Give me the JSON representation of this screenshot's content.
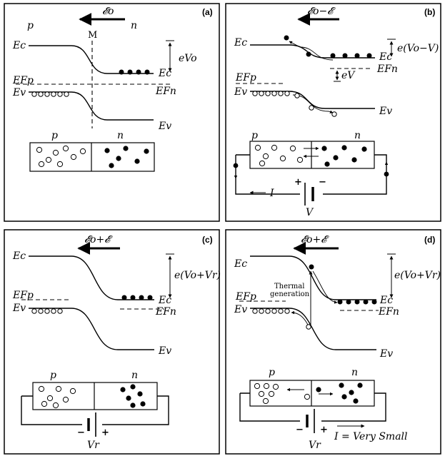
{
  "panels": [
    {
      "tag": "(a)",
      "field": "𝓔o",
      "p": "p",
      "n": "n",
      "M": "M",
      "Ec": "Ec",
      "Ev": "Ev",
      "EFp": "EFp",
      "Ec_right": "Ec",
      "EFn_right": "EFn",
      "Ev_right": "Ev",
      "energy": "eVo",
      "bar_p": "p",
      "bar_n": "n"
    },
    {
      "tag": "(b)",
      "field": "𝓔o−𝓔",
      "Ec": "Ec",
      "Ev": "Ev",
      "EFp": "EFp",
      "Ec_right": "Ec",
      "EFn_right": "EFn",
      "Ev_right": "Ev",
      "energy": "e(Vo−V)",
      "energy2": "eV",
      "bar_p": "p",
      "bar_n": "n",
      "current": "I",
      "voltage": "V",
      "plus": "+",
      "minus": "−"
    },
    {
      "tag": "(c)",
      "field": "𝓔o+𝓔",
      "Ec": "Ec",
      "Ev": "Ev",
      "EFp": "EFp",
      "Ec_right": "Ec",
      "EFn_right": "EFn",
      "Ev_right": "Ev",
      "energy": "e(Vo+Vr)",
      "bar_p": "p",
      "bar_n": "n",
      "voltage": "Vr",
      "plus": "+",
      "minus": "−"
    },
    {
      "tag": "(d)",
      "field": "𝓔o+𝓔",
      "Ec": "Ec",
      "Ev": "Ev",
      "EFp": "EFp",
      "Ec_right": "Ec",
      "EFn_right": "EFn",
      "Ev_right": "Ev",
      "energy": "e(Vo+Vr)",
      "thermal1": "Thermal",
      "thermal2": "generation",
      "bar_p": "p",
      "bar_n": "n",
      "voltage": "Vr",
      "plus": "+",
      "minus": "−",
      "current": "I = Very Small"
    }
  ]
}
